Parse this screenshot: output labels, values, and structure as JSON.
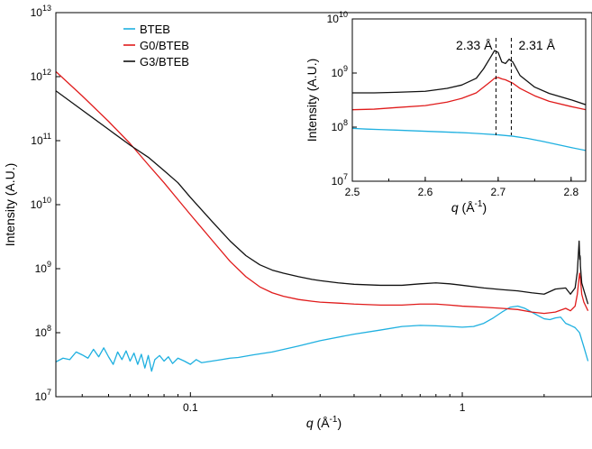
{
  "chart_data": [
    {
      "type": "line",
      "id": "main",
      "xlabel": "q (Å⁻¹)",
      "xlabel_var": "q",
      "xlabel_unit": " (Å",
      "xlabel_exp": "-1",
      "xlabel_close": ")",
      "ylabel": "Intensity (A.U.)",
      "xscale": "log",
      "yscale": "log",
      "xlim": [
        0.032,
        3.0
      ],
      "ylim": [
        10000000.0,
        10000000000000.0
      ],
      "xticks": [
        {
          "value": 0.1,
          "label": "0.1"
        },
        {
          "value": 1,
          "label": "1"
        }
      ],
      "yticks": [
        {
          "value": 10000000.0,
          "base": "10",
          "exp": "7"
        },
        {
          "value": 100000000.0,
          "base": "10",
          "exp": "8"
        },
        {
          "value": 1000000000.0,
          "base": "10",
          "exp": "9"
        },
        {
          "value": 10000000000.0,
          "base": "10",
          "exp": "10"
        },
        {
          "value": 100000000000.0,
          "base": "10",
          "exp": "11"
        },
        {
          "value": 1000000000000.0,
          "base": "10",
          "exp": "12"
        },
        {
          "value": 10000000000000.0,
          "base": "10",
          "exp": "13"
        }
      ],
      "legend": "top-left",
      "series": [
        {
          "name": "BTEB",
          "color": "#1fb0e0",
          "x": [
            0.032,
            0.034,
            0.036,
            0.038,
            0.04,
            0.042,
            0.044,
            0.046,
            0.048,
            0.05,
            0.052,
            0.054,
            0.056,
            0.058,
            0.06,
            0.062,
            0.064,
            0.066,
            0.068,
            0.07,
            0.072,
            0.074,
            0.077,
            0.08,
            0.083,
            0.086,
            0.09,
            0.095,
            0.1,
            0.105,
            0.11,
            0.12,
            0.13,
            0.14,
            0.15,
            0.17,
            0.2,
            0.25,
            0.3,
            0.4,
            0.5,
            0.6,
            0.7,
            0.8,
            0.9,
            1.0,
            1.1,
            1.2,
            1.3,
            1.4,
            1.5,
            1.6,
            1.7,
            1.8,
            1.9,
            2.0,
            2.1,
            2.2,
            2.3,
            2.4,
            2.5,
            2.6,
            2.7,
            2.8,
            2.9
          ],
          "values": [
            35000000.0,
            40000000.0,
            38000000.0,
            50000000.0,
            45000000.0,
            40000000.0,
            55000000.0,
            42000000.0,
            58000000.0,
            42000000.0,
            32000000.0,
            50000000.0,
            38000000.0,
            52000000.0,
            36000000.0,
            48000000.0,
            32000000.0,
            46000000.0,
            28000000.0,
            44000000.0,
            25000000.0,
            38000000.0,
            44000000.0,
            36000000.0,
            42000000.0,
            33000000.0,
            40000000.0,
            36000000.0,
            32000000.0,
            38000000.0,
            34000000.0,
            36000000.0,
            38000000.0,
            40000000.0,
            41000000.0,
            45000000.0,
            50000000.0,
            62000000.0,
            75000000.0,
            95000000.0,
            110000000.0,
            125000000.0,
            130000000.0,
            128000000.0,
            125000000.0,
            122000000.0,
            125000000.0,
            140000000.0,
            170000000.0,
            210000000.0,
            250000000.0,
            260000000.0,
            240000000.0,
            210000000.0,
            185000000.0,
            165000000.0,
            160000000.0,
            170000000.0,
            175000000.0,
            140000000.0,
            130000000.0,
            120000000.0,
            100000000.0,
            60000000.0,
            36000000.0
          ]
        },
        {
          "name": "G0/BTEB",
          "color": "#e01b1b",
          "x": [
            0.032,
            0.04,
            0.05,
            0.06,
            0.07,
            0.08,
            0.09,
            0.1,
            0.12,
            0.14,
            0.16,
            0.18,
            0.2,
            0.22,
            0.25,
            0.28,
            0.3,
            0.35,
            0.4,
            0.5,
            0.6,
            0.7,
            0.8,
            0.9,
            1.0,
            1.2,
            1.4,
            1.6,
            1.8,
            2.0,
            2.2,
            2.4,
            2.5,
            2.6,
            2.65,
            2.7,
            2.72,
            2.75,
            2.8,
            2.9
          ],
          "values": [
            1200000000000.0,
            500000000000.0,
            200000000000.0,
            90000000000.0,
            42000000000.0,
            22000000000.0,
            12000000000.0,
            7000000000.0,
            2800000000.0,
            1300000000.0,
            750000000.0,
            520000000.0,
            420000000.0,
            370000000.0,
            330000000.0,
            310000000.0,
            300000000.0,
            290000000.0,
            280000000.0,
            270000000.0,
            270000000.0,
            280000000.0,
            280000000.0,
            270000000.0,
            260000000.0,
            250000000.0,
            240000000.0,
            230000000.0,
            210000000.0,
            200000000.0,
            210000000.0,
            240000000.0,
            220000000.0,
            260000000.0,
            400000000.0,
            850000000.0,
            700000000.0,
            400000000.0,
            300000000.0,
            220000000.0
          ]
        },
        {
          "name": "G3/BTEB",
          "color": "#111111",
          "x": [
            0.032,
            0.04,
            0.05,
            0.06,
            0.07,
            0.08,
            0.09,
            0.1,
            0.12,
            0.14,
            0.16,
            0.18,
            0.2,
            0.22,
            0.25,
            0.28,
            0.3,
            0.35,
            0.4,
            0.5,
            0.6,
            0.7,
            0.8,
            0.9,
            1.0,
            1.2,
            1.4,
            1.6,
            1.8,
            2.0,
            2.2,
            2.4,
            2.5,
            2.6,
            2.65,
            2.69,
            2.7,
            2.705,
            2.71,
            2.715,
            2.72,
            2.75,
            2.8,
            2.9
          ],
          "values": [
            600000000000.0,
            300000000000.0,
            150000000000.0,
            85000000000.0,
            55000000000.0,
            34000000000.0,
            22000000000.0,
            13000000000.0,
            5500000000.0,
            2700000000.0,
            1600000000.0,
            1150000000.0,
            950000000.0,
            850000000.0,
            750000000.0,
            680000000.0,
            650000000.0,
            600000000.0,
            570000000.0,
            550000000.0,
            550000000.0,
            580000000.0,
            600000000.0,
            580000000.0,
            550000000.0,
            500000000.0,
            470000000.0,
            450000000.0,
            420000000.0,
            400000000.0,
            480000000.0,
            500000000.0,
            400000000.0,
            500000000.0,
            900000000.0,
            2700000000.0,
            1800000000.0,
            1400000000.0,
            1600000000.0,
            1500000000.0,
            1100000000.0,
            600000000.0,
            460000000.0,
            280000000.0
          ]
        }
      ]
    },
    {
      "type": "line",
      "id": "inset",
      "xlabel": "q (Å⁻¹)",
      "xlabel_var": "q",
      "xlabel_unit": " (Å",
      "xlabel_exp": "-1",
      "xlabel_close": ")",
      "ylabel": "Intensity (A.U.)",
      "xscale": "linear",
      "yscale": "log",
      "xlim": [
        2.5,
        2.82
      ],
      "ylim": [
        10000000.0,
        10000000000.0
      ],
      "xticks": [
        {
          "value": 2.5,
          "label": "2.5"
        },
        {
          "value": 2.6,
          "label": "2.6"
        },
        {
          "value": 2.7,
          "label": "2.7"
        },
        {
          "value": 2.8,
          "label": "2.8"
        }
      ],
      "yticks": [
        {
          "value": 10000000.0,
          "base": "10",
          "exp": "7"
        },
        {
          "value": 100000000.0,
          "base": "10",
          "exp": "8"
        },
        {
          "value": 1000000000.0,
          "base": "10",
          "exp": "9"
        },
        {
          "value": 10000000000.0,
          "base": "10",
          "exp": "10"
        }
      ],
      "annotations": [
        {
          "text": "2.33 Å",
          "x": 2.697,
          "style": "dashed-vline"
        },
        {
          "text": "2.31 Å",
          "x": 2.718,
          "style": "dashed-vline"
        }
      ],
      "series": [
        {
          "name": "BTEB",
          "color": "#1fb0e0",
          "x": [
            2.5,
            2.52,
            2.54,
            2.56,
            2.58,
            2.6,
            2.62,
            2.64,
            2.66,
            2.68,
            2.7,
            2.72,
            2.74,
            2.76,
            2.78,
            2.8,
            2.82
          ],
          "values": [
            95000000.0,
            92000000.0,
            90000000.0,
            88000000.0,
            86000000.0,
            84000000.0,
            82000000.0,
            80000000.0,
            78000000.0,
            75000000.0,
            72000000.0,
            68000000.0,
            62000000.0,
            55000000.0,
            48000000.0,
            42000000.0,
            37000000.0
          ]
        },
        {
          "name": "G0/BTEB",
          "color": "#e01b1b",
          "x": [
            2.5,
            2.53,
            2.56,
            2.6,
            2.63,
            2.65,
            2.67,
            2.68,
            2.69,
            2.695,
            2.7,
            2.705,
            2.71,
            2.72,
            2.73,
            2.75,
            2.77,
            2.8,
            2.82
          ],
          "values": [
            210000000.0,
            215000000.0,
            230000000.0,
            250000000.0,
            290000000.0,
            340000000.0,
            430000000.0,
            550000000.0,
            700000000.0,
            800000000.0,
            830000000.0,
            780000000.0,
            750000000.0,
            650000000.0,
            520000000.0,
            380000000.0,
            300000000.0,
            240000000.0,
            210000000.0
          ]
        },
        {
          "name": "G3/BTEB",
          "color": "#111111",
          "x": [
            2.5,
            2.53,
            2.56,
            2.6,
            2.63,
            2.65,
            2.67,
            2.68,
            2.69,
            2.695,
            2.7,
            2.705,
            2.71,
            2.715,
            2.72,
            2.73,
            2.75,
            2.77,
            2.8,
            2.82
          ],
          "values": [
            430000000.0,
            430000000.0,
            440000000.0,
            460000000.0,
            520000000.0,
            600000000.0,
            800000000.0,
            1200000000.0,
            2000000000.0,
            2600000000.0,
            2400000000.0,
            1600000000.0,
            1500000000.0,
            1800000000.0,
            1600000000.0,
            900000000.0,
            550000000.0,
            420000000.0,
            320000000.0,
            260000000.0
          ]
        }
      ]
    }
  ]
}
